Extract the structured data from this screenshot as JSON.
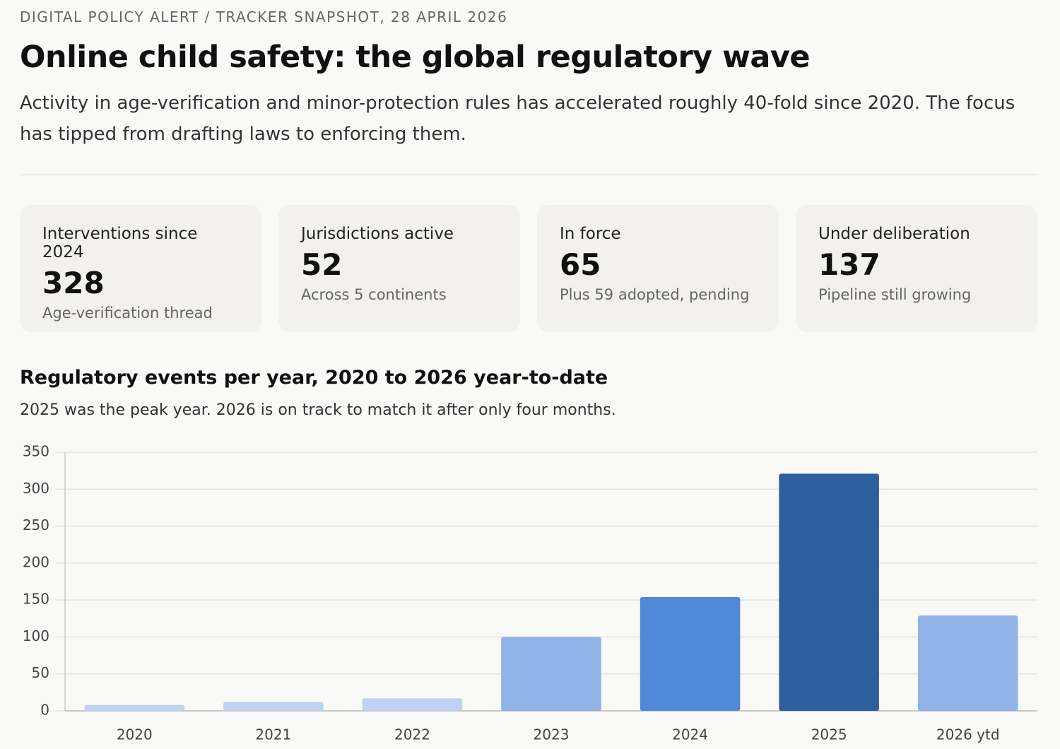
{
  "header": {
    "kicker": "DIGITAL POLICY ALERT / TRACKER SNAPSHOT, 28 APRIL 2026",
    "title": "Online child safety: the global regulatory wave",
    "subtitle": "Activity in age-verification and minor-protection rules has accelerated roughly 40-fold since 2020. The focus has tipped from drafting laws to enforcing them."
  },
  "cards": [
    {
      "label": "Interventions since 2024",
      "value": "328",
      "note": "Age-verification thread"
    },
    {
      "label": "Jurisdictions active",
      "value": "52",
      "note": "Across 5 continents"
    },
    {
      "label": "In force",
      "value": "65",
      "note": "Plus 59 adopted, pending"
    },
    {
      "label": "Under deliberation",
      "value": "137",
      "note": "Pipeline still growing"
    }
  ],
  "chart_data": {
    "type": "bar",
    "title": "Regulatory events per year, 2020 to 2026 year-to-date",
    "subtitle": "2025 was the peak year. 2026 is on track to match it after only four months.",
    "categories": [
      "2020",
      "2021",
      "2022",
      "2023",
      "2024",
      "2025",
      "2026 ytd"
    ],
    "values": [
      8,
      12,
      17,
      100,
      154,
      321,
      129
    ],
    "colors": [
      "#bcd2f0",
      "#bcd2f0",
      "#bcd2f0",
      "#8fb3e6",
      "#4f89d8",
      "#2d5e9e",
      "#8fb3e6"
    ],
    "ylim": [
      0,
      350
    ],
    "yticks": [
      0,
      50,
      100,
      150,
      200,
      250,
      300,
      350
    ],
    "grid": true
  }
}
